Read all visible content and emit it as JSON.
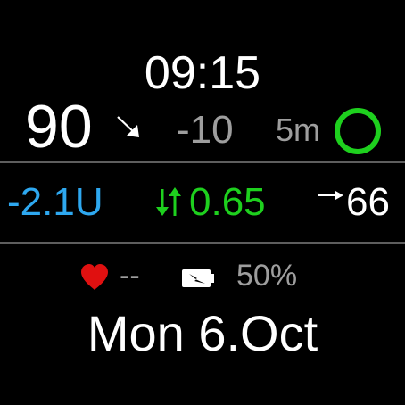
{
  "time": "09:15",
  "glucose": {
    "value": "90",
    "trend_icon": "arrow-down-right-icon",
    "delta": "-10",
    "age": "5m",
    "status_ring_color": "#1ed01e"
  },
  "pump": {
    "iob": "-2.1U",
    "basal_icon": "up-down-arrows-icon",
    "basal": "0.65",
    "sensor_trend_icon": "arrow-right-icon",
    "sensor_value": "66"
  },
  "status": {
    "heart_icon": "heart-icon",
    "heart_rate": "--",
    "battery_icon": "battery-charging-icon",
    "battery": "50%"
  },
  "date": "Mon 6.Oct",
  "colors": {
    "background": "#000000",
    "primary_text": "#ffffff",
    "secondary_text": "#9e9e9e",
    "iob_blue": "#2ea8f0",
    "basal_green": "#1ed01e",
    "heart_red": "#e01010",
    "divider": "#5e5e5e"
  }
}
